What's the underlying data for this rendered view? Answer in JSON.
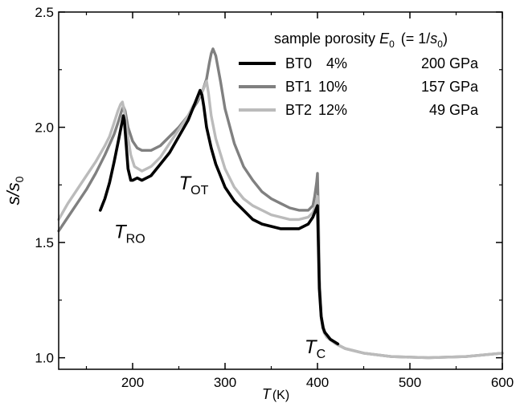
{
  "chart_data": {
    "type": "line",
    "xlabel": {
      "symbol": "T",
      "unit": "(K)"
    },
    "ylabel": {
      "symbol": "s/s",
      "sub": "0"
    },
    "xlim": [
      120,
      600
    ],
    "ylim": [
      0.95,
      2.5
    ],
    "x_ticks": [
      "200",
      "300",
      "400",
      "500",
      "600"
    ],
    "x_tick_values": [
      200,
      300,
      400,
      500,
      600
    ],
    "y_ticks": [
      "1.0",
      "1.5",
      "2.0",
      "2.5"
    ],
    "y_tick_values": [
      1.0,
      1.5,
      2.0,
      2.5
    ],
    "grid": false,
    "legend": {
      "position": "top-right",
      "header": {
        "text": "sample porosity",
        "e_symbol": "E",
        "e_sub": "0",
        "e_rest_open": "(= 1/",
        "e_rest_s": "s",
        "e_rest_sub": "0",
        "e_rest_close": ")"
      },
      "entries": [
        {
          "name": "BT0",
          "porosity": "4%",
          "modulus": "200 GPa"
        },
        {
          "name": "BT1",
          "porosity": "10%",
          "modulus": "157 GPa"
        },
        {
          "name": "BT2",
          "porosity": "12%",
          "modulus": "49 GPa"
        }
      ]
    },
    "annotations": [
      {
        "main": "T",
        "sub": "RO",
        "x": 180,
        "y": 1.52
      },
      {
        "main": "T",
        "sub": "OT",
        "x": 250,
        "y": 1.73
      },
      {
        "main": "T",
        "sub": "C",
        "x": 386,
        "y": 1.02
      }
    ],
    "series": [
      {
        "name": "BT0",
        "color": "#000000",
        "x": [
          165,
          170,
          175,
          180,
          185,
          188,
          190,
          191,
          193,
          195,
          198,
          200,
          205,
          210,
          215,
          220,
          230,
          240,
          250,
          260,
          265,
          270,
          273,
          275,
          277,
          280,
          285,
          290,
          300,
          310,
          320,
          330,
          340,
          350,
          360,
          370,
          380,
          390,
          395,
          398,
          400,
          401,
          402,
          404,
          406,
          408,
          410,
          414,
          418,
          422
        ],
        "y": [
          1.64,
          1.69,
          1.76,
          1.85,
          1.95,
          2.01,
          2.05,
          2.03,
          1.93,
          1.82,
          1.77,
          1.77,
          1.78,
          1.77,
          1.78,
          1.79,
          1.84,
          1.89,
          1.96,
          2.03,
          2.08,
          2.13,
          2.16,
          2.14,
          2.09,
          2.0,
          1.91,
          1.84,
          1.74,
          1.68,
          1.64,
          1.6,
          1.58,
          1.57,
          1.56,
          1.56,
          1.56,
          1.58,
          1.61,
          1.64,
          1.66,
          1.48,
          1.3,
          1.18,
          1.13,
          1.11,
          1.1,
          1.08,
          1.07,
          1.06
        ]
      },
      {
        "name": "BT1",
        "color": "#808080",
        "x": [
          120,
          130,
          140,
          150,
          160,
          170,
          180,
          185,
          188,
          190,
          192,
          195,
          200,
          205,
          210,
          220,
          230,
          240,
          250,
          260,
          270,
          275,
          280,
          283,
          285,
          287,
          290,
          295,
          300,
          310,
          320,
          330,
          340,
          350,
          360,
          370,
          380,
          390,
          395,
          397,
          399,
          400,
          401,
          402,
          404,
          407,
          410,
          420,
          430,
          450,
          480,
          520,
          560,
          600
        ],
        "y": [
          1.55,
          1.61,
          1.67,
          1.73,
          1.8,
          1.88,
          1.97,
          2.03,
          2.07,
          2.09,
          2.07,
          2.0,
          1.94,
          1.91,
          1.9,
          1.9,
          1.92,
          1.96,
          2.0,
          2.05,
          2.11,
          2.15,
          2.21,
          2.28,
          2.32,
          2.34,
          2.31,
          2.2,
          2.08,
          1.93,
          1.83,
          1.77,
          1.72,
          1.69,
          1.67,
          1.65,
          1.64,
          1.64,
          1.66,
          1.7,
          1.76,
          1.8,
          1.62,
          1.35,
          1.18,
          1.12,
          1.09,
          1.06,
          1.04,
          1.02,
          1.005,
          1.0,
          1.005,
          1.02
        ]
      },
      {
        "name": "BT2",
        "color": "#bbbbbb",
        "x": [
          120,
          130,
          140,
          150,
          160,
          170,
          175,
          180,
          184,
          187,
          189,
          191,
          194,
          198,
          202,
          210,
          220,
          230,
          240,
          250,
          260,
          265,
          270,
          275,
          278,
          280,
          282,
          285,
          290,
          300,
          310,
          320,
          330,
          340,
          350,
          360,
          370,
          380,
          390,
          395,
          397,
          399,
          400,
          401,
          402,
          404,
          407,
          410,
          420,
          430,
          450,
          480,
          520,
          560,
          600
        ],
        "y": [
          1.6,
          1.67,
          1.73,
          1.79,
          1.85,
          1.92,
          1.96,
          2.02,
          2.07,
          2.1,
          2.11,
          2.07,
          1.98,
          1.88,
          1.83,
          1.81,
          1.83,
          1.87,
          1.93,
          1.99,
          2.05,
          2.09,
          2.12,
          2.15,
          2.18,
          2.2,
          2.15,
          2.05,
          1.95,
          1.82,
          1.74,
          1.69,
          1.66,
          1.64,
          1.62,
          1.61,
          1.6,
          1.6,
          1.61,
          1.63,
          1.65,
          1.68,
          1.7,
          1.55,
          1.33,
          1.17,
          1.11,
          1.09,
          1.06,
          1.04,
          1.02,
          1.005,
          1.0,
          1.005,
          1.02
        ]
      }
    ]
  }
}
